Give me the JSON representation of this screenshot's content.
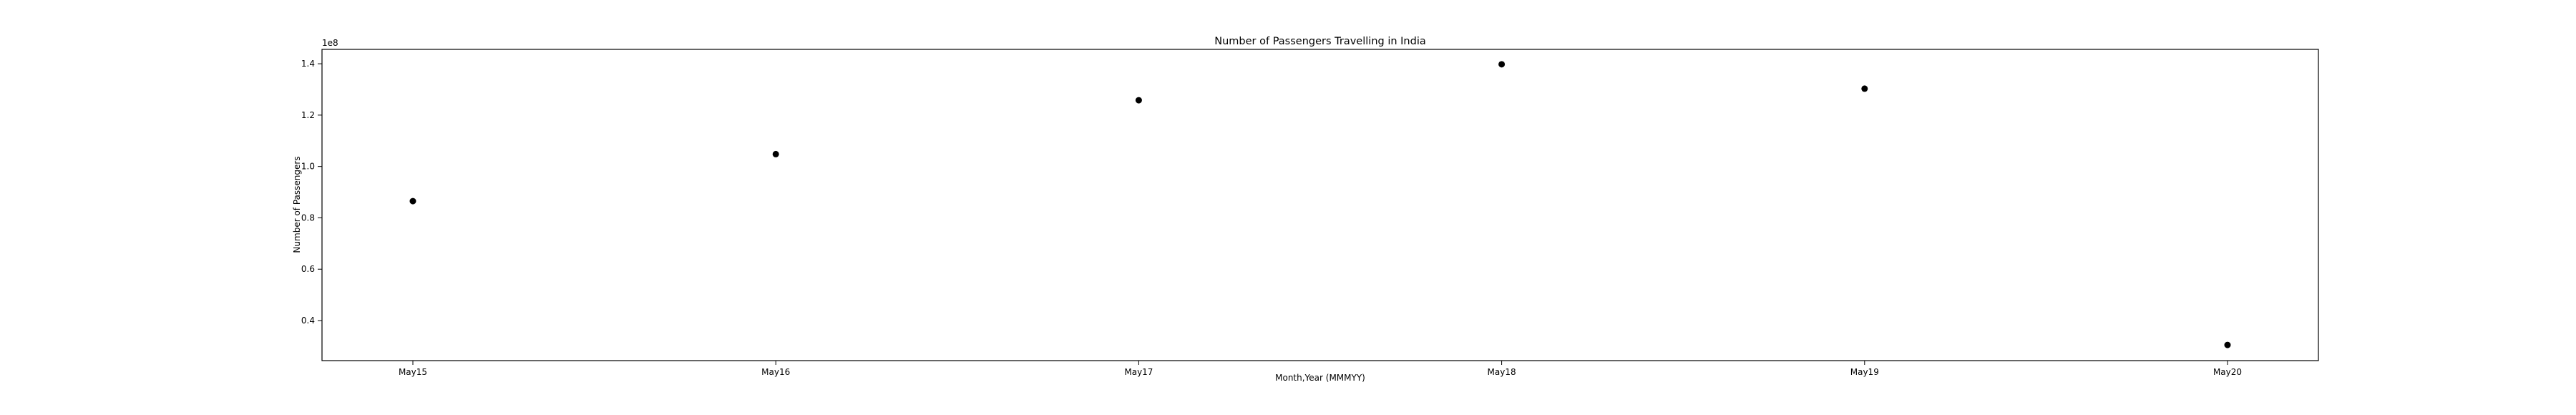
{
  "chart_data": {
    "type": "scatter",
    "title": "Number of Passengers Travelling in India",
    "xlabel": "Month,Year (MMMYY)",
    "ylabel": "Number of Passengers",
    "y_offset_label": "1e8",
    "categories": [
      "May15",
      "May16",
      "May17",
      "May18",
      "May19",
      "May20"
    ],
    "values": [
      86500000,
      104800000,
      125800000,
      139800000,
      130300000,
      30500000
    ],
    "ylim": [
      24400000,
      145600000
    ],
    "yticks": [
      0.4,
      0.6,
      0.8,
      1.0,
      1.2,
      1.4
    ],
    "ytick_labels": [
      "0.4",
      "0.6",
      "0.8",
      "1.0",
      "1.2",
      "1.4"
    ],
    "y_scale": 100000000,
    "grid": false,
    "marker_color": "#000000"
  }
}
